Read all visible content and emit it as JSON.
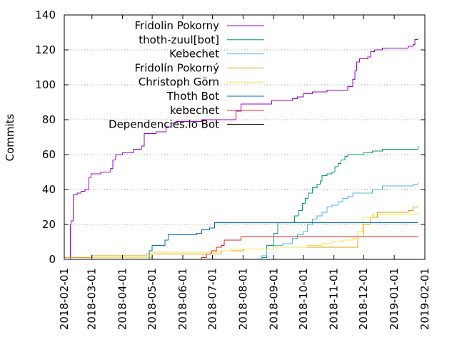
{
  "chart_data": {
    "type": "line",
    "title": "",
    "xlabel": "",
    "ylabel": "Commits",
    "xlim": [
      "2018-02-01",
      "2019-02-01"
    ],
    "ylim": [
      0,
      140
    ],
    "yticks": [
      0,
      20,
      40,
      60,
      80,
      100,
      120,
      140
    ],
    "xticks": [
      "2018-02-01",
      "2018-03-01",
      "2018-04-01",
      "2018-05-01",
      "2018-06-01",
      "2018-07-01",
      "2018-08-01",
      "2018-09-01",
      "2018-10-01",
      "2018-11-01",
      "2018-12-01",
      "2019-01-01",
      "2019-02-01"
    ],
    "grid": "horizontal",
    "legend": "top-center",
    "series": [
      {
        "name": "Fridolin Pokorny",
        "color": "#9400d3",
        "points": [
          [
            "2018-02-05",
            0
          ],
          [
            "2018-02-07",
            20
          ],
          [
            "2018-02-08",
            22
          ],
          [
            "2018-02-10",
            37
          ],
          [
            "2018-02-14",
            38
          ],
          [
            "2018-02-18",
            39
          ],
          [
            "2018-02-22",
            40
          ],
          [
            "2018-02-26",
            47
          ],
          [
            "2018-02-28",
            49
          ],
          [
            "2018-03-10",
            50
          ],
          [
            "2018-03-20",
            52
          ],
          [
            "2018-03-22",
            57
          ],
          [
            "2018-03-25",
            60
          ],
          [
            "2018-04-01",
            61
          ],
          [
            "2018-04-10",
            61
          ],
          [
            "2018-04-12",
            63
          ],
          [
            "2018-04-20",
            65
          ],
          [
            "2018-04-23",
            72
          ],
          [
            "2018-05-05",
            73
          ],
          [
            "2018-05-15",
            76
          ],
          [
            "2018-05-20",
            78
          ],
          [
            "2018-05-25",
            79
          ],
          [
            "2018-06-15",
            79
          ],
          [
            "2018-06-20",
            80
          ],
          [
            "2018-07-25",
            85
          ],
          [
            "2018-07-30",
            89
          ],
          [
            "2018-08-01",
            89
          ],
          [
            "2018-08-25",
            89
          ],
          [
            "2018-08-30",
            91
          ],
          [
            "2018-09-15",
            91
          ],
          [
            "2018-09-20",
            92
          ],
          [
            "2018-09-25",
            93
          ],
          [
            "2018-10-01",
            95
          ],
          [
            "2018-10-10",
            96
          ],
          [
            "2018-10-20",
            96
          ],
          [
            "2018-10-25",
            97
          ],
          [
            "2018-11-10",
            97
          ],
          [
            "2018-11-15",
            99
          ],
          [
            "2018-11-20",
            103
          ],
          [
            "2018-11-22",
            108
          ],
          [
            "2018-11-24",
            113
          ],
          [
            "2018-11-27",
            115
          ],
          [
            "2018-12-05",
            116
          ],
          [
            "2018-12-08",
            119
          ],
          [
            "2018-12-12",
            120
          ],
          [
            "2018-12-20",
            121
          ],
          [
            "2019-01-10",
            121
          ],
          [
            "2019-01-15",
            122
          ],
          [
            "2019-01-20",
            123
          ],
          [
            "2019-01-22",
            126
          ],
          [
            "2019-01-25",
            126
          ]
        ]
      },
      {
        "name": "thoth-zuul[bot]",
        "color": "#009e73",
        "points": [
          [
            "2018-07-25",
            0
          ],
          [
            "2018-08-20",
            1
          ],
          [
            "2018-08-25",
            8
          ],
          [
            "2018-09-01",
            15
          ],
          [
            "2018-09-05",
            21
          ],
          [
            "2018-09-20",
            21
          ],
          [
            "2018-09-22",
            25
          ],
          [
            "2018-09-26",
            28
          ],
          [
            "2018-09-30",
            32
          ],
          [
            "2018-10-03",
            35
          ],
          [
            "2018-10-06",
            38
          ],
          [
            "2018-10-10",
            41
          ],
          [
            "2018-10-15",
            43
          ],
          [
            "2018-10-18",
            45
          ],
          [
            "2018-10-20",
            48
          ],
          [
            "2018-10-25",
            49
          ],
          [
            "2018-10-30",
            50
          ],
          [
            "2018-11-02",
            53
          ],
          [
            "2018-11-05",
            55
          ],
          [
            "2018-11-08",
            57
          ],
          [
            "2018-11-12",
            59
          ],
          [
            "2018-11-15",
            60
          ],
          [
            "2018-11-25",
            60
          ],
          [
            "2018-12-01",
            61
          ],
          [
            "2018-12-10",
            62
          ],
          [
            "2018-12-20",
            63
          ],
          [
            "2019-01-15",
            63
          ],
          [
            "2019-01-22",
            63
          ],
          [
            "2019-01-25",
            65
          ]
        ]
      },
      {
        "name": "Kebechet",
        "color": "#56b4e9",
        "points": [
          [
            "2018-08-05",
            0
          ],
          [
            "2018-08-20",
            2
          ],
          [
            "2018-08-25",
            6
          ],
          [
            "2018-09-01",
            8
          ],
          [
            "2018-09-10",
            9
          ],
          [
            "2018-09-20",
            12
          ],
          [
            "2018-09-25",
            14
          ],
          [
            "2018-10-01",
            16
          ],
          [
            "2018-10-05",
            20
          ],
          [
            "2018-10-10",
            23
          ],
          [
            "2018-10-15",
            25
          ],
          [
            "2018-10-20",
            27
          ],
          [
            "2018-10-25",
            30
          ],
          [
            "2018-10-30",
            31
          ],
          [
            "2018-11-05",
            33
          ],
          [
            "2018-11-10",
            35
          ],
          [
            "2018-11-15",
            36
          ],
          [
            "2018-11-20",
            38
          ],
          [
            "2018-12-01",
            38
          ],
          [
            "2018-12-10",
            40
          ],
          [
            "2018-12-20",
            42
          ],
          [
            "2019-01-20",
            43
          ],
          [
            "2019-01-25",
            44
          ]
        ]
      },
      {
        "name": "Fridolín Pokorný",
        "color": "#e69f00",
        "points": [
          [
            "2018-02-01",
            1
          ],
          [
            "2018-02-20",
            1
          ],
          [
            "2018-03-01",
            2
          ],
          [
            "2018-04-10",
            2
          ],
          [
            "2018-04-25",
            3
          ],
          [
            "2018-06-15",
            3
          ],
          [
            "2018-07-10",
            5
          ],
          [
            "2018-08-01",
            6
          ],
          [
            "2018-08-25",
            6
          ],
          [
            "2018-09-01",
            7
          ],
          [
            "2018-11-20",
            7
          ],
          [
            "2018-11-25",
            13
          ],
          [
            "2018-12-01",
            20
          ],
          [
            "2018-12-08",
            24
          ],
          [
            "2018-12-15",
            27
          ],
          [
            "2019-01-10",
            27
          ],
          [
            "2019-01-15",
            28
          ],
          [
            "2019-01-20",
            30
          ],
          [
            "2019-01-25",
            30
          ]
        ]
      },
      {
        "name": "Christoph Görn",
        "color": "#f0e442",
        "points": [
          [
            "2018-02-10",
            0
          ],
          [
            "2018-03-01",
            1
          ],
          [
            "2018-04-20",
            1
          ],
          [
            "2018-05-01",
            4
          ],
          [
            "2018-06-30",
            4
          ],
          [
            "2018-07-05",
            5
          ],
          [
            "2018-07-20",
            6
          ],
          [
            "2018-08-25",
            6
          ],
          [
            "2018-09-01",
            7
          ],
          [
            "2018-09-30",
            7
          ],
          [
            "2018-10-05",
            8
          ],
          [
            "2018-10-20",
            9
          ],
          [
            "2018-10-30",
            10
          ],
          [
            "2018-11-10",
            11
          ],
          [
            "2018-11-20",
            12
          ],
          [
            "2018-11-25",
            16
          ],
          [
            "2018-11-30",
            24
          ],
          [
            "2018-12-10",
            26
          ],
          [
            "2019-01-25",
            27
          ]
        ]
      },
      {
        "name": "Thoth Bot",
        "color": "#0072b2",
        "points": [
          [
            "2018-04-25",
            0
          ],
          [
            "2018-04-28",
            5
          ],
          [
            "2018-05-01",
            8
          ],
          [
            "2018-05-10",
            8
          ],
          [
            "2018-05-14",
            11
          ],
          [
            "2018-05-17",
            14
          ],
          [
            "2018-06-10",
            14
          ],
          [
            "2018-06-15",
            15
          ],
          [
            "2018-06-20",
            17
          ],
          [
            "2018-06-28",
            18
          ],
          [
            "2018-07-03",
            21
          ],
          [
            "2019-01-25",
            21
          ]
        ]
      },
      {
        "name": "kebechet",
        "color": "#e51e10",
        "points": [
          [
            "2018-05-25",
            0
          ],
          [
            "2018-06-20",
            1
          ],
          [
            "2018-06-25",
            3
          ],
          [
            "2018-06-30",
            5
          ],
          [
            "2018-07-05",
            7
          ],
          [
            "2018-07-10",
            8
          ],
          [
            "2018-07-13",
            11
          ],
          [
            "2018-07-25",
            11
          ],
          [
            "2018-07-30",
            13
          ],
          [
            "2019-01-25",
            13
          ]
        ]
      },
      {
        "name": "Dependencies.io Bot",
        "color": "#000000",
        "points": [
          [
            "2018-02-01",
            0
          ],
          [
            "2019-01-25",
            0
          ]
        ]
      }
    ]
  }
}
